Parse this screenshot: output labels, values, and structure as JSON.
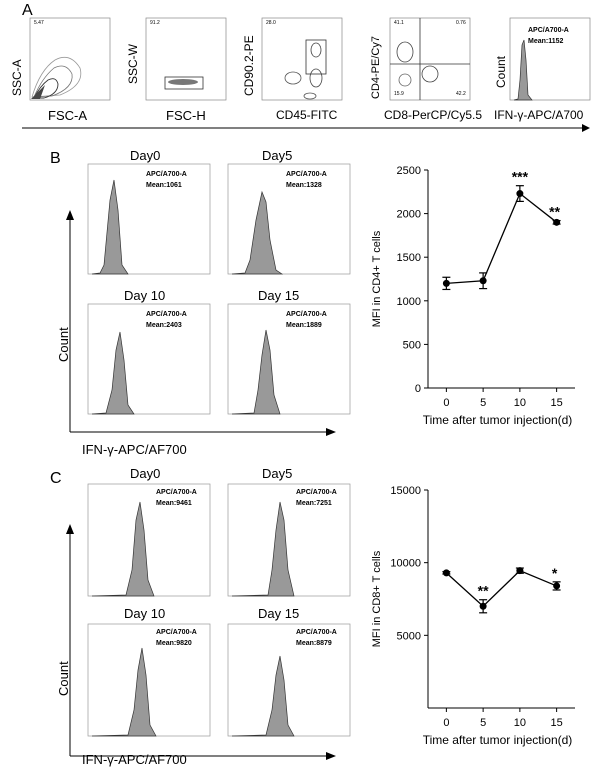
{
  "panels": {
    "A": {
      "letter": "A",
      "plots": [
        {
          "y": "SSC-A",
          "x": "FSC-A",
          "gate_value": "5.47"
        },
        {
          "y": "SSC-W",
          "x": "FSC-H",
          "gate_value": "91.2"
        },
        {
          "y": "CD90.2-PE",
          "x": "CD45-FITC",
          "gate_value": "28.0"
        },
        {
          "y": "CD4-PE/Cy7",
          "x": "CD8-PerCP/Cy5.5",
          "quadrants": [
            "41.1",
            "0.76",
            "15.9",
            "42.2"
          ]
        },
        {
          "y": "Count",
          "x": "IFN-γ-APC/A700",
          "gate_name": "APC/A700-A",
          "mean": "Mean:1152"
        }
      ]
    },
    "B": {
      "letter": "B",
      "hist_titles": [
        "Day0",
        "Day5",
        "Day 10",
        "Day 15"
      ],
      "gate_names": [
        "APC/A700-A",
        "APC/A700-A",
        "APC/A700-A",
        "APC/A700-A"
      ],
      "means": [
        "Mean:1061",
        "Mean:1328",
        "Mean:2403",
        "Mean:1889"
      ],
      "ylabel": "Count",
      "xlabel": "IFN-γ-APC/AF700"
    },
    "C": {
      "letter": "C",
      "hist_titles": [
        "Day0",
        "Day5",
        "Day 10",
        "Day 15"
      ],
      "gate_names": [
        "APC/A700-A",
        "APC/A700-A",
        "APC/A700-A",
        "APC/A700-A"
      ],
      "means": [
        "Mean:9461",
        "Mean:7251",
        "Mean:9820",
        "Mean:8879"
      ],
      "ylabel": "Count",
      "xlabel": "IFN-γ-APC/AF700"
    }
  },
  "chart_data": [
    {
      "type": "line",
      "xlabel": "Time after tumor injection(d)",
      "ylabel": "MFI in CD4+ T cells",
      "x": [
        0,
        5,
        10,
        15
      ],
      "values": [
        1200,
        1230,
        2230,
        1900
      ],
      "errors": [
        70,
        90,
        90,
        20
      ],
      "significance": [
        "",
        "",
        "***",
        "**"
      ],
      "ylim": [
        0,
        2500
      ],
      "yticks": [
        0,
        500,
        1000,
        1500,
        2000,
        2500
      ],
      "xticks": [
        0,
        5,
        10,
        15
      ]
    },
    {
      "type": "line",
      "xlabel": "Time after tumor injection(d)",
      "ylabel": "MFI in CD8+ T cells",
      "x": [
        0,
        5,
        10,
        15
      ],
      "values": [
        9300,
        7000,
        9450,
        8400
      ],
      "errors": [
        80,
        450,
        180,
        280
      ],
      "significance": [
        "",
        "**",
        "",
        "*"
      ],
      "ylim": [
        0,
        15000
      ],
      "yticks": [
        5000,
        10000,
        15000
      ],
      "xticks": [
        0,
        5,
        10,
        15
      ]
    }
  ]
}
